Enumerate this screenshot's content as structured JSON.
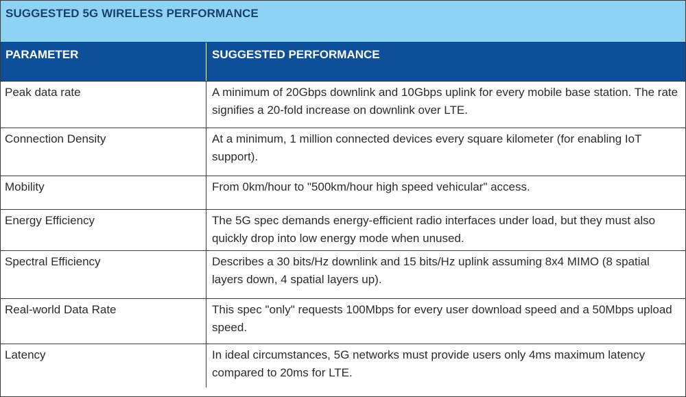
{
  "table": {
    "title": "SUGGESTED 5G WIRELESS PERFORMANCE",
    "headers": {
      "parameter": "PARAMETER",
      "performance": "SUGGESTED PERFORMANCE"
    },
    "rows": [
      {
        "parameter": "Peak data rate",
        "performance": "A minimum of 20Gbps downlink and 10Gbps uplink for every mobile base station. The rate signifies a 20-fold increase on downlink over LTE."
      },
      {
        "parameter": "Connection Density",
        "performance": "At a minimum, 1 million connected devices every square kilometer (for enabling IoT support)."
      },
      {
        "parameter": "Mobility",
        "performance": "From 0km/hour to \"500km/hour high speed vehicular\" access."
      },
      {
        "parameter": "Energy Efficiency",
        "performance": "The 5G spec demands energy-efficient radio interfaces under load, but they must also quickly drop into low energy mode when unused."
      },
      {
        "parameter": "Spectral Efficiency",
        "performance": "Describes a 30 bits/Hz downlink and 15 bits/Hz uplink assuming 8x4 MIMO (8 spatial layers down, 4 spatial layers up)."
      },
      {
        "parameter": "Real-world Data Rate",
        "performance": "This spec \"only\" requests 100Mbps for every user download speed and a 50Mbps upload speed."
      },
      {
        "parameter": "Latency",
        "performance": "In ideal circumstances, 5G networks must provide users only 4ms maximum latency compared to 20ms for LTE."
      }
    ]
  },
  "colors": {
    "title_bg": "#8fd3f4",
    "header_bg": "#0e4f99"
  }
}
